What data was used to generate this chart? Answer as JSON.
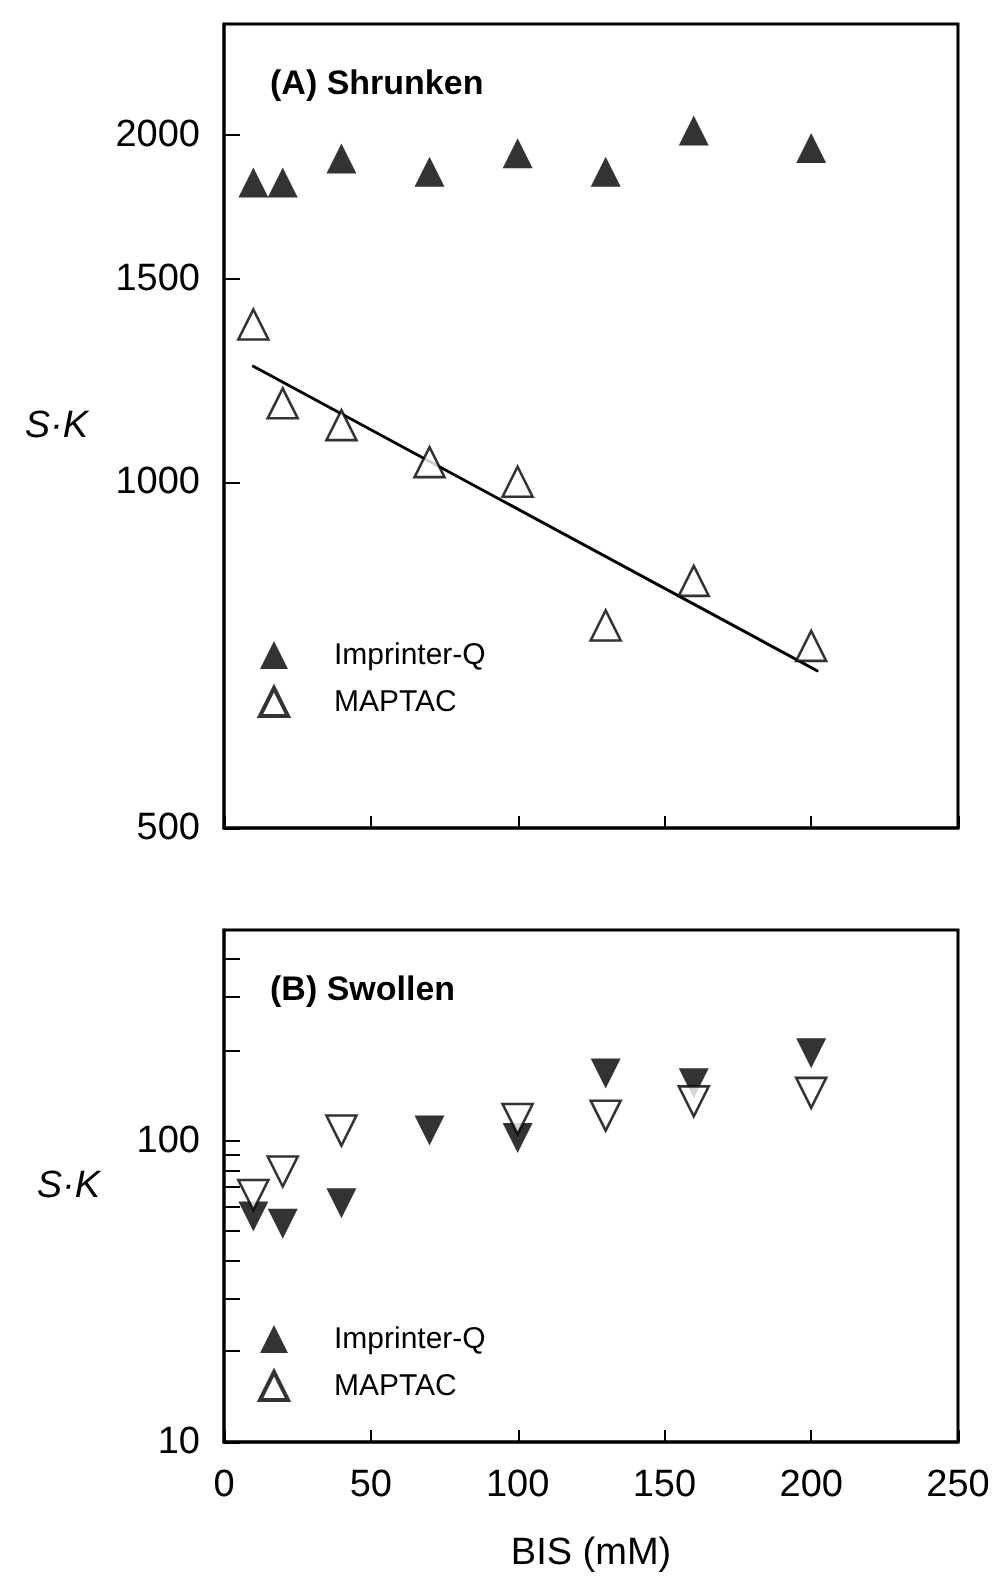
{
  "chart_data": [
    {
      "type": "scatter",
      "title": "(A) Shrunken",
      "ylabel": "S·K",
      "log": "y",
      "xlim": [
        0,
        250
      ],
      "xticks": [
        0,
        50,
        100,
        150,
        200,
        250
      ],
      "ylim": [
        500,
        2500
      ],
      "yticks": [
        500,
        1000,
        1500,
        2000
      ],
      "tick_labels": "y",
      "legend": "bottom left",
      "grid": false,
      "series": [
        {
          "name": "Imprinter-Q",
          "color": "#000000",
          "marker": "triangle",
          "x": [
            10,
            20,
            40,
            70,
            100,
            130,
            160,
            200
          ],
          "values": [
            1820,
            1820,
            1910,
            1860,
            1930,
            1860,
            2020,
            1950
          ]
        },
        {
          "name": "MAPTAC",
          "color": "#000000",
          "marker": "triangle-open",
          "x": [
            10,
            20,
            40,
            70,
            100,
            130,
            160,
            200
          ],
          "values": [
            1370,
            1170,
            1120,
            1040,
            1000,
            750,
            820,
            720
          ]
        },
        {
          "type": "line",
          "color": "#000000",
          "marker": "none",
          "x": [
            10,
            202
          ],
          "values": [
            1260,
            685
          ]
        }
      ]
    },
    {
      "type": "scatter",
      "title": "(B) Swollen",
      "xlabel": "BIS (mM)",
      "ylabel": "S·K",
      "log": "y",
      "xlim": [
        0,
        250
      ],
      "xticks": [
        0,
        50,
        100,
        150,
        200,
        250
      ],
      "ylim": [
        10,
        500
      ],
      "yticks": [
        10,
        {
          "value": 20,
          "label": null
        },
        {
          "value": 30,
          "label": null
        },
        {
          "value": 40,
          "label": null
        },
        {
          "value": 50,
          "label": null
        },
        {
          "value": 60,
          "label": null
        },
        {
          "value": 70,
          "label": null
        },
        {
          "value": 80,
          "label": null
        },
        {
          "value": 90,
          "label": null
        },
        100,
        {
          "value": 200,
          "label": null
        },
        {
          "value": 300,
          "label": null
        },
        {
          "value": 400,
          "label": null
        }
      ],
      "legend": "bottom left",
      "grid": false,
      "series": [
        {
          "name": "Imprinter-Q",
          "color": "#000000",
          "marker": "triangle-down",
          "x": [
            10,
            20,
            40,
            70,
            100,
            130,
            160,
            200
          ],
          "values": [
            56,
            53,
            62,
            108,
            102,
            167,
            155,
            195
          ]
        },
        {
          "name": "MAPTAC",
          "color": "#000000",
          "marker": "triangle-down-open",
          "x": [
            10,
            20,
            40,
            70,
            100,
            130,
            160,
            200
          ],
          "values": [
            66,
            79,
            108,
            null,
            118,
            121,
            135,
            144
          ]
        }
      ]
    }
  ]
}
